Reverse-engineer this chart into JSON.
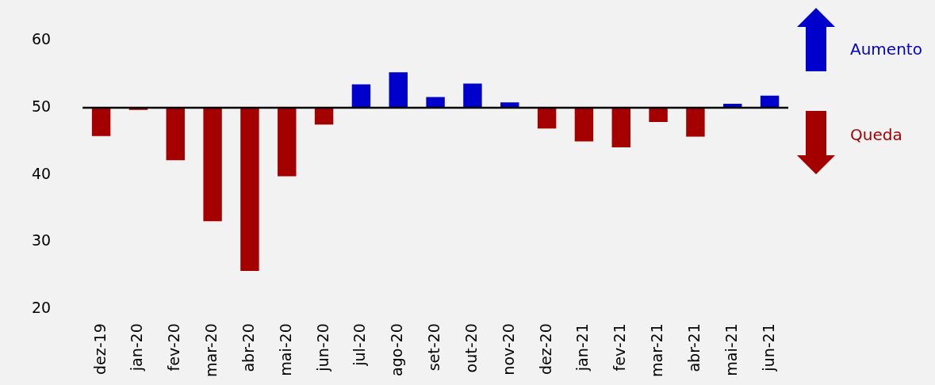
{
  "chart_data": {
    "type": "bar",
    "categories": [
      "dez-19",
      "jan-20",
      "fev-20",
      "mar-20",
      "abr-20",
      "mai-20",
      "jun-20",
      "jul-20",
      "ago-20",
      "set-20",
      "out-20",
      "nov-20",
      "dez-20",
      "jan-21",
      "fev-21",
      "mar-21",
      "abr-21",
      "mai-21",
      "jun-21"
    ],
    "base": [
      50,
      50,
      50,
      50,
      50,
      50,
      50,
      50,
      50,
      50,
      50,
      50,
      50,
      50,
      50,
      50,
      50,
      50,
      50
    ],
    "values": [
      -4.2,
      -0.3,
      -7.8,
      -16.9,
      -24.3,
      -10.2,
      -2.5,
      3.5,
      5.3,
      1.6,
      3.6,
      0.8,
      -3.1,
      -5.0,
      -5.9,
      -2.1,
      -4.3,
      0.6,
      1.8
    ],
    "colors": [
      "#a50000",
      "#a50000",
      "#a50000",
      "#a50000",
      "#a50000",
      "#a50000",
      "#a50000",
      "#0000cc",
      "#0000cc",
      "#0000cc",
      "#0000cc",
      "#0000cc",
      "#a50000",
      "#a50000",
      "#a50000",
      "#a50000",
      "#a50000",
      "#0000cc",
      "#0000cc"
    ],
    "ref_lines": [
      {
        "axis": "y",
        "value": 50,
        "color": "#000000"
      }
    ],
    "annotations": [
      "Aumento",
      "Queda"
    ],
    "ylim": [
      20,
      60
    ],
    "yticks": [
      20,
      30,
      40,
      50,
      60
    ],
    "grid": false
  }
}
